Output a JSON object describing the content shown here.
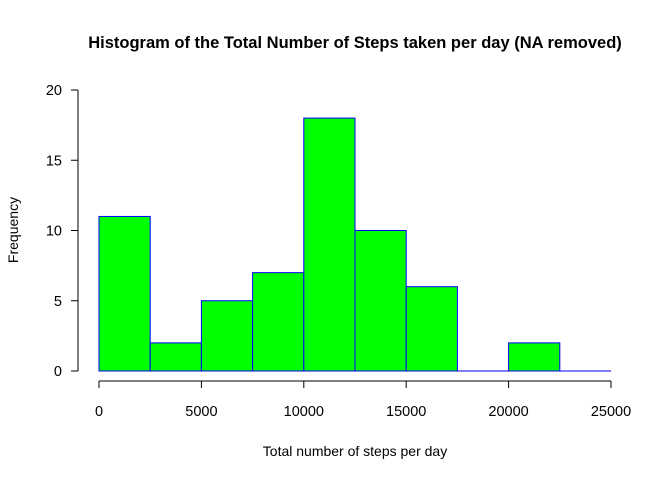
{
  "chart_data": {
    "type": "bar",
    "subtype": "histogram",
    "title": "Histogram of the Total Number of Steps taken per day (NA removed)",
    "xlabel": "Total number of steps per day",
    "ylabel": "Frequency",
    "bins": [
      {
        "x0": 0,
        "x1": 2500,
        "count": 11
      },
      {
        "x0": 2500,
        "x1": 5000,
        "count": 2
      },
      {
        "x0": 5000,
        "x1": 7500,
        "count": 5
      },
      {
        "x0": 7500,
        "x1": 10000,
        "count": 7
      },
      {
        "x0": 10000,
        "x1": 12500,
        "count": 18
      },
      {
        "x0": 12500,
        "x1": 15000,
        "count": 10
      },
      {
        "x0": 15000,
        "x1": 17500,
        "count": 6
      },
      {
        "x0": 17500,
        "x1": 20000,
        "count": 0
      },
      {
        "x0": 20000,
        "x1": 22500,
        "count": 2
      },
      {
        "x0": 22500,
        "x1": 25000,
        "count": 0
      }
    ],
    "xlim": [
      0,
      25000
    ],
    "ylim": [
      0,
      20
    ],
    "xticks": [
      "0",
      "5000",
      "10000",
      "15000",
      "20000",
      "25000"
    ],
    "yticks": [
      "0",
      "5",
      "10",
      "15",
      "20"
    ],
    "grid": false,
    "legend": "none",
    "bar_fill": "#00ff00",
    "bar_border": "#0000ff"
  }
}
